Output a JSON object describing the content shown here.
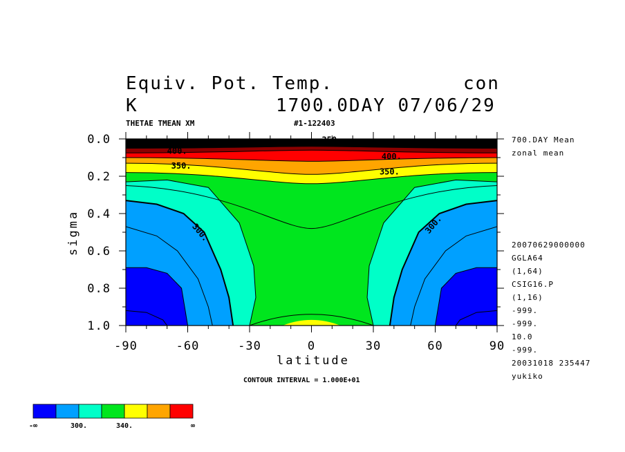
{
  "header": {
    "title_line1": "Equiv. Pot. Temp.",
    "title_right1": "con",
    "title_line2_left": "K",
    "title_line2_right": "1700.0DAY 07/06/29",
    "var_label": "THETAE TMEAN XM",
    "run_id": "#1-122403"
  },
  "side_info": [
    "700.DAY Mean",
    "zonal mean",
    "",
    "",
    "",
    "",
    "",
    "",
    "20070629000000",
    "GGLA64",
    "(1,64)",
    "CSIG16.P",
    "(1,16)",
    "-999.",
    "-999.",
    "10.0",
    "-999.",
    "20031018 235447",
    "yukiko"
  ],
  "footer": {
    "contour_interval": "CONTOUR INTERVAL = 1.000E+01"
  },
  "chart_data": {
    "type": "heatmap",
    "title": "Equiv. Pot. Temp.",
    "units": "K",
    "xlabel": "latitude",
    "ylabel": "sigma",
    "xlim": [
      -90,
      90
    ],
    "ylim": [
      1.0,
      0.0
    ],
    "x_ticks": [
      "-90",
      "-60",
      "-30",
      "0",
      "30",
      "60",
      "90"
    ],
    "y_ticks": [
      "0.0",
      "0.2",
      "0.4",
      "0.6",
      "0.8",
      "1.0"
    ],
    "contour_interval": 10,
    "contour_labels": [
      {
        "text": "350.",
        "x": -68,
        "y": 0.16
      },
      {
        "text": "350.",
        "x": 33,
        "y": 0.19
      },
      {
        "text": "300.",
        "x": -58,
        "y": 0.47
      },
      {
        "text": "300.",
        "x": 57,
        "y": 0.51
      },
      {
        "text": "400.",
        "x": -70,
        "y": 0.08
      },
      {
        "text": "400.",
        "x": 34,
        "y": 0.11
      },
      {
        "text": "350.",
        "x": 5,
        "y": 0.02
      }
    ],
    "color_levels": {
      "colors": [
        "#0000ff",
        "#00a0ff",
        "#00ffc8",
        "#00e61e",
        "#ffff00",
        "#ffa500",
        "#ff0000"
      ],
      "boundary_labels": [
        "-∞",
        "300.",
        "340.",
        "∞"
      ]
    },
    "bands": [
      {
        "level": 0,
        "color": "#0000ff",
        "left": [
          [
            -90,
            0.69
          ],
          [
            -80,
            0.69
          ],
          [
            -70,
            0.72
          ],
          [
            -63,
            0.8
          ],
          [
            -60,
            1.0
          ]
        ],
        "right_sym": true
      },
      {
        "level": 1,
        "color": "#00a0ff",
        "left": [
          [
            -90,
            0.33
          ],
          [
            -75,
            0.35
          ],
          [
            -62,
            0.4
          ],
          [
            -52,
            0.5
          ],
          [
            -44,
            0.7
          ],
          [
            -40,
            0.85
          ],
          [
            -38,
            1.0
          ]
        ],
        "right_sym": true
      },
      {
        "level": 2,
        "color": "#00ffc8",
        "left": [
          [
            -90,
            0.23
          ],
          [
            -70,
            0.22
          ],
          [
            -50,
            0.26
          ],
          [
            -35,
            0.45
          ],
          [
            -28,
            0.68
          ],
          [
            -27,
            0.85
          ],
          [
            -30,
            1.0
          ]
        ],
        "right_sym": true
      }
    ]
  },
  "colorbar": {
    "labels": [
      "-∞",
      "300.",
      "340.",
      "∞"
    ]
  }
}
